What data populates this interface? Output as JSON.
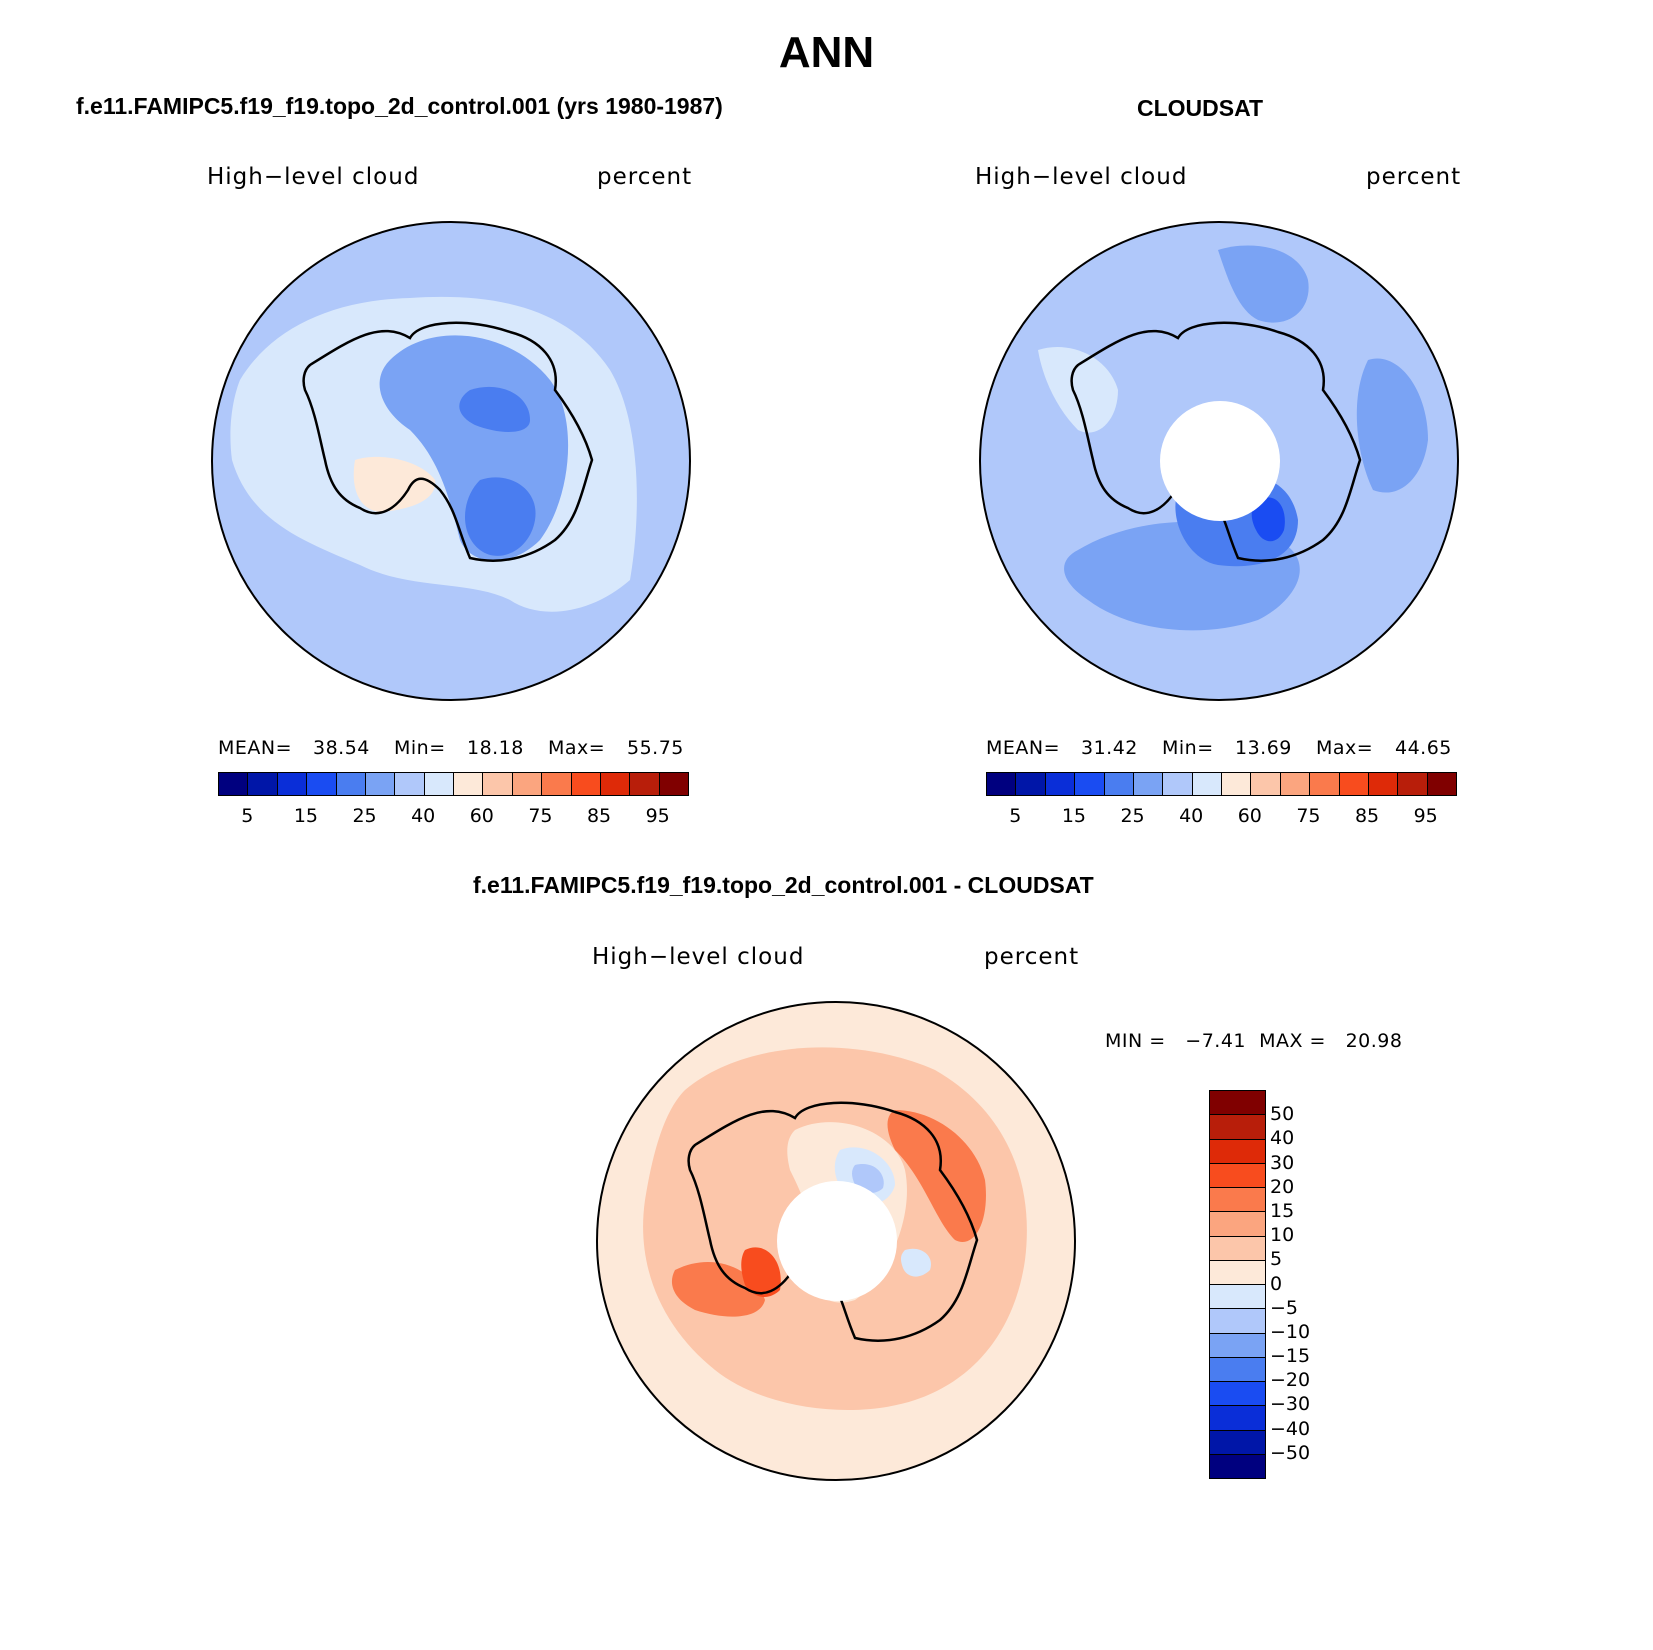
{
  "title": "ANN",
  "panels": {
    "model": {
      "case_title": "f.e11.FAMIPC5.f19_f19.topo_2d_control.001 (yrs 1980-1987)",
      "variable_label": "High−level cloud",
      "units_label": "percent",
      "mean_label": "MEAN=",
      "mean_value": "38.54",
      "min_label": "Min=",
      "min_value": "18.18",
      "max_label": "Max=",
      "max_value": "55.75"
    },
    "obs": {
      "case_title": "CLOUDSAT",
      "variable_label": "High−level cloud",
      "units_label": "percent",
      "mean_label": "MEAN=",
      "mean_value": "31.42",
      "min_label": "Min=",
      "min_value": "13.69",
      "max_label": "Max=",
      "max_value": "44.65"
    },
    "diff": {
      "case_title": "f.e11.FAMIPC5.f19_f19.topo_2d_control.001 - CLOUDSAT",
      "variable_label": "High−level cloud",
      "units_label": "percent",
      "minmax_text": "MIN =   −7.41  MAX =   20.98"
    }
  },
  "colorbars": {
    "absolute": {
      "colors": [
        "#00007f",
        "#0016a8",
        "#0a2ed8",
        "#1a4cf2",
        "#4a7df0",
        "#7aa3f4",
        "#b0c8fa",
        "#d8e8fc",
        "#fde9d9",
        "#fcc6aa",
        "#fba57f",
        "#fa7a4c",
        "#f84c1e",
        "#de2a08",
        "#b81e0a",
        "#800000"
      ],
      "tick_labels": [
        "5",
        "15",
        "25",
        "40",
        "60",
        "75",
        "85",
        "95"
      ]
    },
    "difference": {
      "colors_top_to_bottom": [
        "#800000",
        "#b81e0a",
        "#de2a08",
        "#f84c1e",
        "#fa7a4c",
        "#fba57f",
        "#fcc6aa",
        "#fde9d9",
        "#d8e8fc",
        "#b0c8fa",
        "#7aa3f4",
        "#4a7df0",
        "#1a4cf2",
        "#0a2ed8",
        "#0016a8",
        "#00007f"
      ],
      "tick_labels": [
        "50",
        "40",
        "30",
        "20",
        "15",
        "10",
        "5",
        "0",
        "−5",
        "−10",
        "−15",
        "−20",
        "−30",
        "−40",
        "−50"
      ]
    }
  }
}
